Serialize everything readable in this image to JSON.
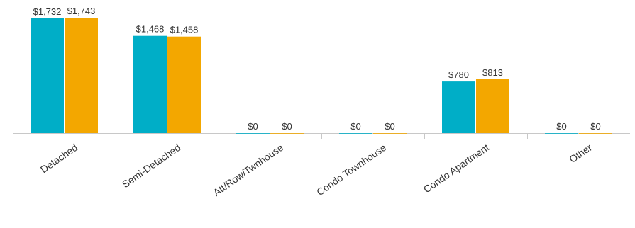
{
  "chart_data": {
    "type": "bar",
    "categories": [
      "Detached",
      "Semi-Detached",
      "Att/Row/Twnhouse",
      "Condo Townhouse",
      "Condo Apartment",
      "Other"
    ],
    "series": [
      {
        "values": [
          1732,
          1468,
          0,
          0,
          780,
          0
        ],
        "labels": [
          "$1,732",
          "$1,468",
          "$0",
          "$0",
          "$780",
          "$0"
        ],
        "color": "#00aec7"
      },
      {
        "values": [
          1743,
          1458,
          0,
          0,
          813,
          0
        ],
        "labels": [
          "$1,743",
          "$1,458",
          "$0",
          "$0",
          "$813",
          "$0"
        ],
        "color": "#f3a700"
      }
    ],
    "ylim": [
      0,
      1800
    ],
    "grid": false,
    "legend": "none",
    "axis_color": "#c8c8c8"
  }
}
